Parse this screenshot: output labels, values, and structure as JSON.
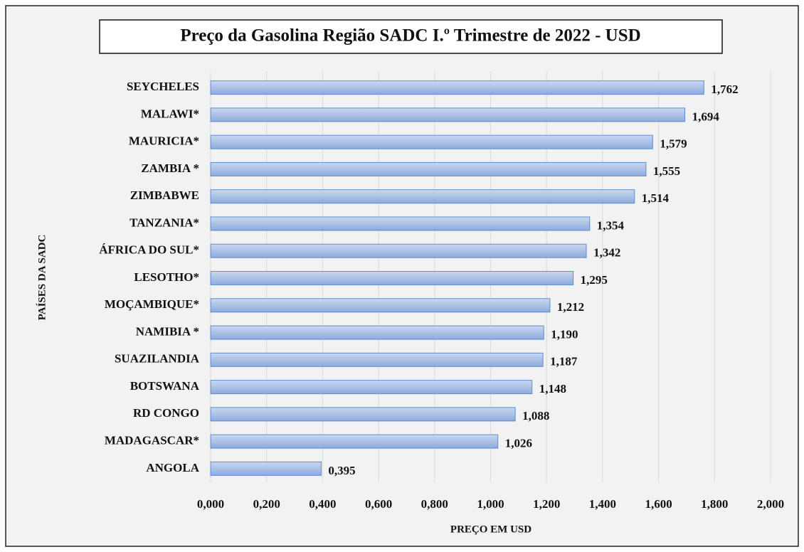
{
  "chart_data": {
    "type": "bar",
    "orientation": "horizontal",
    "title": "Preço da Gasolina Região SADC I.º Trimestre de 2022 - USD",
    "x_label": "PREÇO EM USD",
    "y_label": "PAÍSES DA SADC",
    "categories": [
      "SEYCHELES",
      "MALAWI*",
      "MAURICIA*",
      "ZAMBIA *",
      "ZIMBABWE",
      "TANZANIA*",
      "ÁFRICA DO SUL*",
      "LESOTHO*",
      "MOÇAMBIQUE*",
      "NAMIBIA *",
      "SUAZILANDIA",
      "BOTSWANA",
      "RD CONGO",
      "MADAGASCAR*",
      "ANGOLA"
    ],
    "values": [
      1.762,
      1.694,
      1.579,
      1.555,
      1.514,
      1.354,
      1.342,
      1.295,
      1.212,
      1.19,
      1.187,
      1.148,
      1.088,
      1.026,
      0.395
    ],
    "value_labels": [
      "1,762",
      "1,694",
      "1,579",
      "1,555",
      "1,514",
      "1,354",
      "1,342",
      "1,295",
      "1,212",
      "1,190",
      "1,187",
      "1,148",
      "1,088",
      "1,026",
      "0,395"
    ],
    "color": "#9db8e4",
    "xlim": [
      0,
      2
    ],
    "xticks": [
      {
        "value": 0,
        "label": "0,000"
      },
      {
        "value": 0.2,
        "label": "0,200"
      },
      {
        "value": 0.4,
        "label": "0,400"
      },
      {
        "value": 0.6,
        "label": "0,600"
      },
      {
        "value": 0.8,
        "label": "0,800"
      },
      {
        "value": 1.0,
        "label": "1,000"
      },
      {
        "value": 1.2,
        "label": "1,200"
      },
      {
        "value": 1.4,
        "label": "1,400"
      },
      {
        "value": 1.6,
        "label": "1,600"
      },
      {
        "value": 1.8,
        "label": "1,800"
      },
      {
        "value": 2.0,
        "label": "2,000"
      }
    ],
    "grid": true
  }
}
